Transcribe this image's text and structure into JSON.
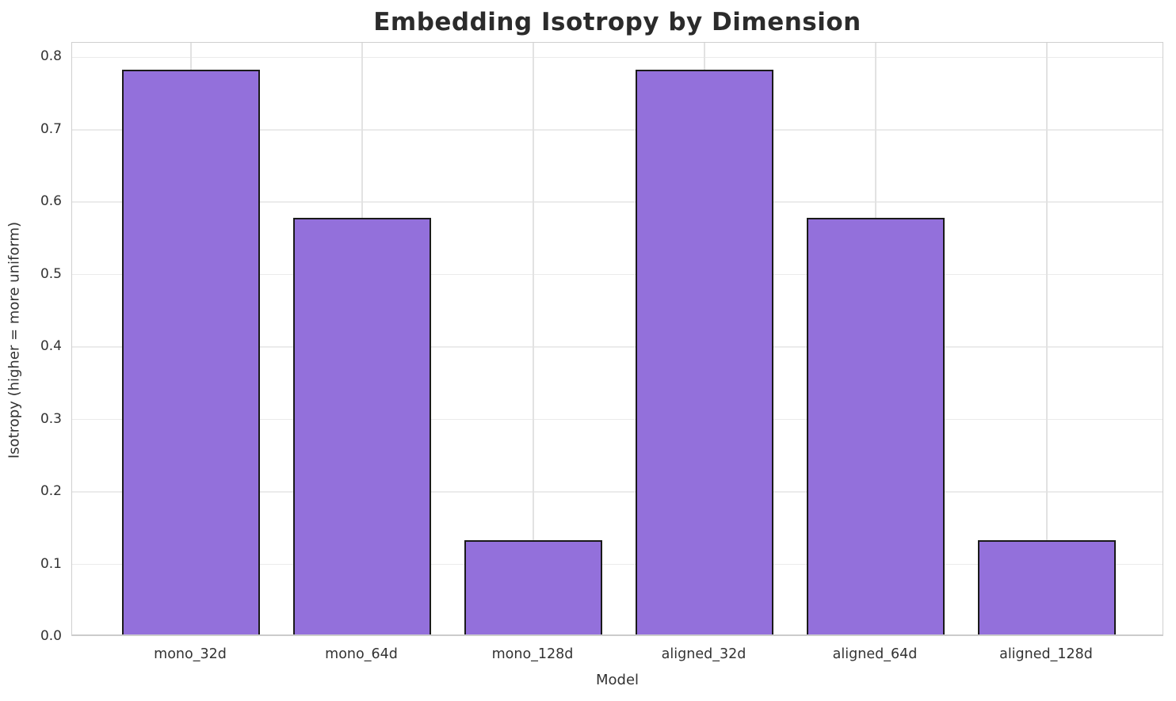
{
  "chart_data": {
    "type": "bar",
    "title": "Embedding Isotropy by Dimension",
    "xlabel": "Model",
    "ylabel": "Isotropy (higher = more uniform)",
    "categories": [
      "mono_32d",
      "mono_64d",
      "mono_128d",
      "aligned_32d",
      "aligned_64d",
      "aligned_128d"
    ],
    "values": [
      0.781,
      0.576,
      0.131,
      0.781,
      0.576,
      0.131
    ],
    "ylim": [
      0,
      0.82
    ],
    "yticks": [
      0.0,
      0.1,
      0.2,
      0.3,
      0.4,
      0.5,
      0.6,
      0.7,
      0.8
    ],
    "grid": true,
    "legend": "none",
    "bar_fill_color": "#9370DB",
    "bar_edge_color": "#1a1a1a",
    "gridline_color": "#ebebeb",
    "spine_color": "#cfcfcf",
    "title_color": "#2b2b2b",
    "tick_label_color": "#333333"
  }
}
